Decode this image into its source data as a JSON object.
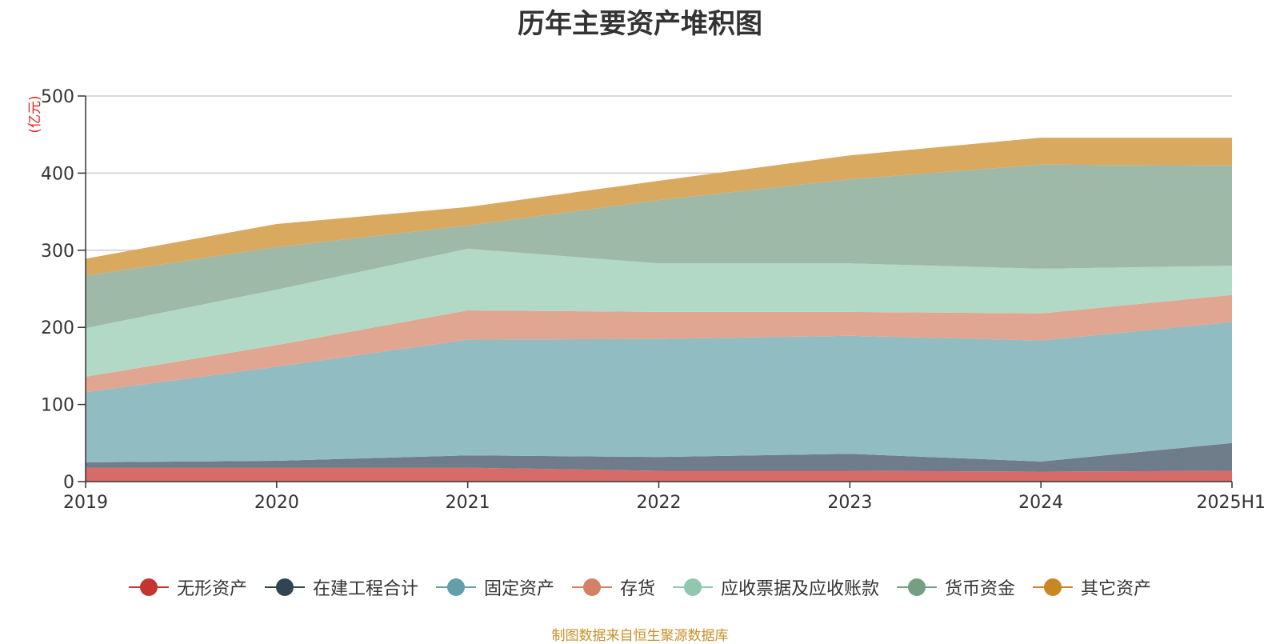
{
  "chart_data": {
    "type": "area",
    "stacked": true,
    "title": "历年主要资产堆积图",
    "unit_label": "(亿元)",
    "categories": [
      "2019",
      "2020",
      "2021",
      "2022",
      "2023",
      "2024",
      "2025H1"
    ],
    "ylim": [
      0,
      500
    ],
    "yticks": [
      0,
      100,
      200,
      300,
      400,
      500
    ],
    "grid": true,
    "legend_position": "bottom",
    "series": [
      {
        "name": "无形资产",
        "color": "#c23531",
        "fill": "#d76b69",
        "values": [
          18,
          18,
          18,
          14,
          14,
          13,
          14
        ]
      },
      {
        "name": "在建工程合计",
        "color": "#2f4554",
        "fill": "#6e7d89",
        "values": [
          7,
          9,
          16,
          18,
          22,
          13,
          36
        ]
      },
      {
        "name": "固定资产",
        "color": "#61a0a8",
        "fill": "#90bcc2",
        "values": [
          91,
          122,
          150,
          153,
          153,
          157,
          157
        ]
      },
      {
        "name": "存货",
        "color": "#d48265",
        "fill": "#e1a691",
        "values": [
          20,
          28,
          38,
          35,
          31,
          35,
          35
        ]
      },
      {
        "name": "应收票据及应收账款",
        "color": "#91c7ae",
        "fill": "#b2d8c6",
        "values": [
          63,
          72,
          80,
          63,
          63,
          58,
          38
        ]
      },
      {
        "name": "货币资金",
        "color": "#749f83",
        "fill": "#9eb9a7",
        "values": [
          68,
          55,
          30,
          82,
          109,
          135,
          130
        ]
      },
      {
        "name": "其它资产",
        "color": "#ca8622",
        "fill": "#d8a95f",
        "values": [
          22,
          30,
          24,
          25,
          31,
          35,
          36
        ]
      }
    ]
  },
  "source_note": "制图数据来自恒生聚源数据库"
}
